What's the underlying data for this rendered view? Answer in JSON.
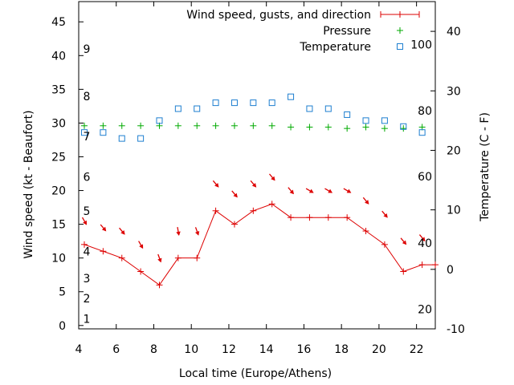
{
  "chart_data": {
    "type": "line",
    "xlabel": "Local time (Europe/Athens)",
    "ylabel": "Wind speed (kt - Beaufort)",
    "y2label": "Temperature (C - F)",
    "xlim": [
      4,
      23
    ],
    "ylim": [
      -0.5,
      48
    ],
    "y2lim": [
      -10,
      45
    ],
    "x_ticks": [
      4,
      6,
      8,
      10,
      12,
      14,
      16,
      18,
      20,
      22
    ],
    "y_ticks": [
      0,
      5,
      10,
      15,
      20,
      25,
      30,
      35,
      40,
      45
    ],
    "y2_ticks": [
      -10,
      0,
      10,
      20,
      30,
      40
    ],
    "beaufort_labels": [
      {
        "text": "1",
        "y": 1
      },
      {
        "text": "2",
        "y": 4
      },
      {
        "text": "3",
        "y": 7
      },
      {
        "text": "4",
        "y": 11
      },
      {
        "text": "5",
        "y": 17
      },
      {
        "text": "6",
        "y": 22
      },
      {
        "text": "7",
        "y": 28
      },
      {
        "text": "8",
        "y": 34
      },
      {
        "text": "9",
        "y": 41
      }
    ],
    "fahrenheit_labels": [
      {
        "text": "20",
        "y2": -6.7
      },
      {
        "text": "40",
        "y2": 4.4
      },
      {
        "text": "60",
        "y2": 15.6
      },
      {
        "text": "80",
        "y2": 26.7
      },
      {
        "text": "100",
        "y2": 37.8
      }
    ],
    "legend": "top-right",
    "series": [
      {
        "name": "Wind speed, gusts, and direction",
        "marker": "+",
        "color": "#dd0000",
        "x": [
          4.3,
          5.3,
          6.3,
          7.3,
          8.3,
          9.3,
          10.3,
          11.3,
          12.3,
          13.3,
          14.3,
          15.3,
          16.3,
          17.3,
          18.3,
          19.3,
          20.3,
          21.3,
          22.3,
          23
        ],
        "values": [
          12,
          11,
          10,
          8,
          6,
          10,
          10,
          17,
          15,
          17,
          18,
          16,
          16,
          16,
          16,
          14,
          12,
          8,
          9,
          9
        ]
      },
      {
        "name": "Pressure",
        "marker": "+",
        "color": "#00aa00",
        "x": [
          4.3,
          5.3,
          6.3,
          7.3,
          8.3,
          9.3,
          10.3,
          11.3,
          12.3,
          13.3,
          14.3,
          15.3,
          16.3,
          17.3,
          18.3,
          19.3,
          20.3,
          21.3,
          22.3
        ],
        "values": [
          29.6,
          29.6,
          29.6,
          29.6,
          29.6,
          29.6,
          29.6,
          29.6,
          29.6,
          29.6,
          29.6,
          29.4,
          29.4,
          29.4,
          29.2,
          29.4,
          29.2,
          29.2,
          29.4
        ]
      },
      {
        "name": "Temperature",
        "marker": "square",
        "color": "#1e7fd0",
        "axis": "y2",
        "x": [
          4.3,
          5.3,
          6.3,
          7.3,
          8.3,
          9.3,
          10.3,
          11.3,
          12.3,
          13.3,
          14.3,
          15.3,
          16.3,
          17.3,
          18.3,
          19.3,
          20.3,
          21.3,
          22.3
        ],
        "values": [
          23,
          23,
          22,
          22,
          25,
          27,
          27,
          28,
          28,
          28,
          28,
          29,
          27,
          27,
          26,
          25,
          25,
          24,
          23
        ]
      }
    ],
    "wind_arrows": {
      "x": [
        4.3,
        5.3,
        6.3,
        7.3,
        8.3,
        9.3,
        10.3,
        11.3,
        12.3,
        13.3,
        14.3,
        15.3,
        16.3,
        17.3,
        18.3,
        19.3,
        20.3,
        21.3,
        22.3
      ],
      "y": [
        15.5,
        14.5,
        14,
        12,
        10,
        14,
        14,
        21,
        19.5,
        21,
        22,
        20,
        20,
        20,
        20,
        18.5,
        16.5,
        12.5,
        13
      ],
      "direction_deg": [
        330,
        320,
        320,
        330,
        340,
        350,
        340,
        320,
        320,
        320,
        320,
        320,
        300,
        300,
        300,
        320,
        320,
        320,
        320
      ]
    }
  }
}
